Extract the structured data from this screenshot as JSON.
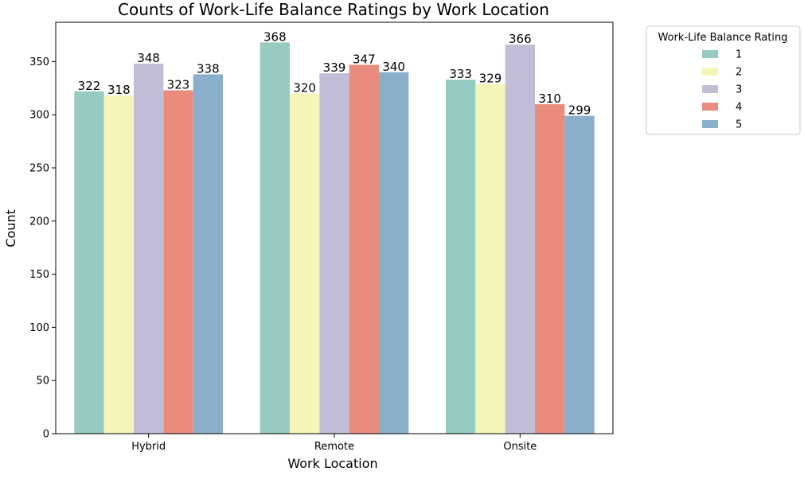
{
  "chart_data": {
    "type": "bar",
    "title": "Counts of Work-Life Balance Ratings by Work Location",
    "xlabel": "Work Location",
    "ylabel": "Count",
    "categories": [
      "Hybrid",
      "Remote",
      "Onsite"
    ],
    "ylim": [
      0,
      387
    ],
    "yticks": [
      0,
      50,
      100,
      150,
      200,
      250,
      300,
      350
    ],
    "grid": false,
    "legend": {
      "title": "Work-Life Balance Rating",
      "placement": "outside-top-right"
    },
    "series": [
      {
        "name": "1",
        "color": "#96cbc2",
        "values": [
          322,
          368,
          333
        ]
      },
      {
        "name": "2",
        "color": "#f6f5b9",
        "values": [
          318,
          320,
          329
        ]
      },
      {
        "name": "3",
        "color": "#c1bdd7",
        "values": [
          348,
          339,
          366
        ]
      },
      {
        "name": "4",
        "color": "#e98c7e",
        "values": [
          323,
          347,
          310
        ]
      },
      {
        "name": "5",
        "color": "#89afca",
        "values": [
          338,
          340,
          299
        ]
      }
    ]
  }
}
